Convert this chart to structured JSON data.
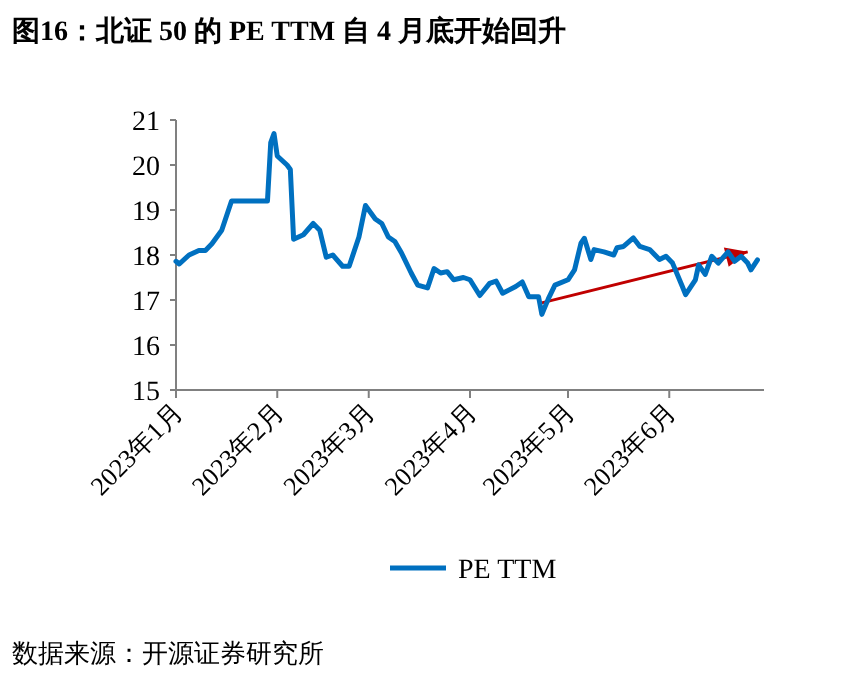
{
  "chart_data": {
    "type": "line",
    "title": "图16：北证 50 的 PE TTM 自 4 月底开始回升",
    "annotations": [
      "数据来源：开源证券研究所"
    ],
    "xlim": [
      "2023-01-01",
      "2023-06-30"
    ],
    "ylim": [
      15,
      21
    ],
    "yticks": [
      15,
      16,
      17,
      18,
      19,
      20,
      21
    ],
    "xticks": [
      {
        "value": "2023-01-01",
        "label": "2023年1月"
      },
      {
        "value": "2023-02-01",
        "label": "2023年2月"
      },
      {
        "value": "2023-03-01",
        "label": "2023年3月"
      },
      {
        "value": "2023-04-01",
        "label": "2023年4月"
      },
      {
        "value": "2023-05-01",
        "label": "2023年5月"
      },
      {
        "value": "2023-06-01",
        "label": "2023年6月"
      }
    ],
    "grid": false,
    "legend": "bottom",
    "marker": "none",
    "line_style": "solid",
    "series": [
      {
        "name": "PE TTM",
        "color": "#0070c0",
        "x": [
          "2023-01-01",
          "2023-01-02",
          "2023-01-05",
          "2023-01-08",
          "2023-01-10",
          "2023-01-12",
          "2023-01-15",
          "2023-01-18",
          "2023-01-29",
          "2023-01-30",
          "2023-01-31",
          "2023-02-01",
          "2023-02-04",
          "2023-02-05",
          "2023-02-06",
          "2023-02-09",
          "2023-02-12",
          "2023-02-14",
          "2023-02-16",
          "2023-02-18",
          "2023-02-21",
          "2023-02-23",
          "2023-02-26",
          "2023-02-28",
          "2023-03-03",
          "2023-03-05",
          "2023-03-07",
          "2023-03-09",
          "2023-03-11",
          "2023-03-14",
          "2023-03-16",
          "2023-03-19",
          "2023-03-21",
          "2023-03-23",
          "2023-03-25",
          "2023-03-27",
          "2023-03-30",
          "2023-04-01",
          "2023-04-04",
          "2023-04-07",
          "2023-04-09",
          "2023-04-11",
          "2023-04-15",
          "2023-04-17",
          "2023-04-19",
          "2023-04-22",
          "2023-04-23",
          "2023-04-25",
          "2023-04-27",
          "2023-05-01",
          "2023-05-03",
          "2023-05-05",
          "2023-05-06",
          "2023-05-08",
          "2023-05-09",
          "2023-05-12",
          "2023-05-15",
          "2023-05-16",
          "2023-05-18",
          "2023-05-21",
          "2023-05-23",
          "2023-05-26",
          "2023-05-29",
          "2023-05-31",
          "2023-06-02",
          "2023-06-05",
          "2023-06-06",
          "2023-06-09",
          "2023-06-10",
          "2023-06-12",
          "2023-06-14",
          "2023-06-16",
          "2023-06-19",
          "2023-06-21",
          "2023-06-23",
          "2023-06-25",
          "2023-06-26",
          "2023-06-28"
        ],
        "values": [
          17.86,
          17.8,
          18.0,
          18.1,
          18.1,
          18.25,
          18.55,
          19.2,
          19.2,
          20.5,
          20.7,
          20.2,
          20.0,
          19.9,
          18.35,
          18.45,
          18.7,
          18.55,
          17.95,
          18.0,
          17.75,
          17.75,
          18.4,
          19.1,
          18.8,
          18.7,
          18.4,
          18.3,
          18.05,
          17.6,
          17.33,
          17.27,
          17.7,
          17.6,
          17.63,
          17.45,
          17.5,
          17.45,
          17.1,
          17.37,
          17.42,
          17.15,
          17.3,
          17.4,
          17.07,
          17.07,
          16.68,
          17.03,
          17.33,
          17.45,
          17.67,
          18.27,
          18.37,
          17.9,
          18.12,
          18.07,
          18.0,
          18.16,
          18.19,
          18.38,
          18.19,
          18.12,
          17.9,
          17.97,
          17.82,
          17.3,
          17.12,
          17.45,
          17.78,
          17.57,
          17.97,
          17.82,
          18.07,
          17.86,
          17.97,
          17.82,
          17.67,
          17.89
        ]
      },
      {
        "type": "line",
        "color": "#c00000",
        "x": [
          "2023-04-22",
          "2023-06-25"
        ],
        "values": [
          16.92,
          18.07
        ]
      }
    ]
  }
}
